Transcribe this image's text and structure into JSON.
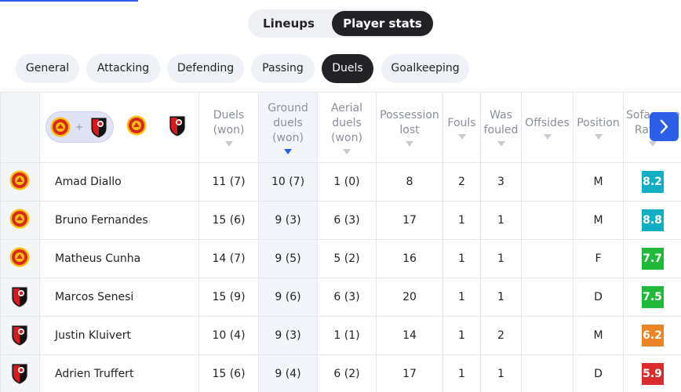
{
  "tabs": [
    "Lineups",
    "Player stats"
  ],
  "categories": [
    "General",
    "Attacking",
    "Defending",
    "Passing",
    "Duels",
    "Goalkeeping"
  ],
  "table": {
    "columns": [
      "Duels (won)",
      "Ground duels (won)",
      "Aerial duels (won)",
      "Possession lost",
      "Fouls",
      "Was fouled",
      "Offsides",
      "Position",
      "Sofascore Rating"
    ],
    "rows": [
      [
        "Amad Diallo",
        "11 (7)",
        "10 (7)",
        "1 (0)",
        "8",
        "2",
        "3",
        "M",
        "8.2"
      ],
      [
        "Bruno Fernandes",
        "15 (6)",
        "9 (3)",
        "6 (3)",
        "17",
        "1",
        "1",
        "M",
        "8.8"
      ],
      [
        "Matheus Cunha",
        "14 (7)",
        "9 (5)",
        "5 (2)",
        "16",
        "1",
        "1",
        "F",
        "7.7"
      ],
      [
        "Marcos Senesi",
        "15 (9)",
        "9 (6)",
        "6 (3)",
        "20",
        "1",
        "1",
        "D",
        "7.5"
      ],
      [
        "Justin Kluivert",
        "10 (4)",
        "9 (3)",
        "1 (1)",
        "14",
        "1",
        "2",
        "M",
        "6.2"
      ],
      [
        "Adrien Truffert",
        "15 (6)",
        "9 (4)",
        "6 (2)",
        "17",
        "1",
        "1",
        "D",
        "5.9"
      ]
    ]
  }
}
